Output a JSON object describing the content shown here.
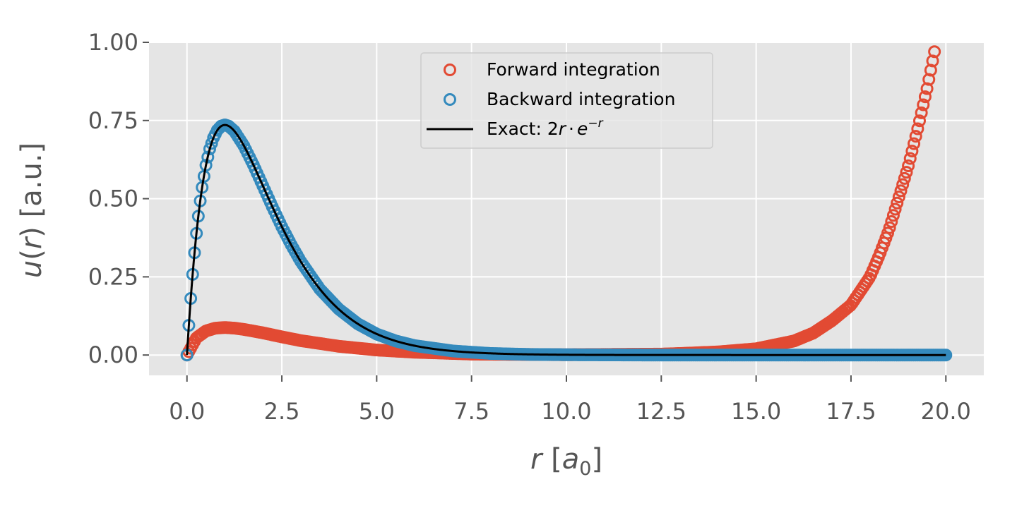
{
  "chart_data": {
    "type": "line",
    "xlabel": {
      "var": "r",
      "unit_open": " [",
      "unit_base": "a",
      "unit_sub": "0",
      "unit_close": "]"
    },
    "ylabel": {
      "var": "u",
      "open": "(",
      "arg": "r",
      "close": ")",
      "unit": " [a.u.]"
    },
    "xlim": [
      -1.0,
      21.0
    ],
    "ylim": [
      -0.065,
      1.0
    ],
    "x_ticks": [
      "0.0",
      "2.5",
      "5.0",
      "7.5",
      "10.0",
      "12.5",
      "15.0",
      "17.5",
      "20.0"
    ],
    "x_tick_values": [
      0,
      2.5,
      5,
      7.5,
      10,
      12.5,
      15,
      17.5,
      20
    ],
    "y_ticks": [
      "0.00",
      "0.25",
      "0.50",
      "0.75",
      "1.00"
    ],
    "y_tick_values": [
      0,
      0.25,
      0.5,
      0.75,
      1.0
    ],
    "grid": true,
    "legend_position": "top-center",
    "colors": {
      "forward": "#E24A33",
      "backward": "#348ABD",
      "exact": "#000000",
      "axes_bg": "#E5E5E5",
      "grid": "#FFFFFF",
      "tick": "#555555"
    },
    "series": [
      {
        "name": "Forward integration",
        "marker": "open-circle",
        "x": [
          0,
          0.25,
          0.5,
          0.75,
          1.0,
          1.25,
          1.5,
          2.0,
          2.5,
          3.0,
          4.0,
          5.0,
          6.0,
          7.5,
          10.0,
          12.5,
          13.0,
          14.0,
          15.0,
          16.0,
          16.5,
          17.0,
          17.5,
          18.0,
          18.25,
          18.5,
          18.75,
          19.0,
          19.25,
          19.5,
          19.6,
          19.7
        ],
        "y": [
          0.0,
          0.055,
          0.077,
          0.086,
          0.088,
          0.086,
          0.082,
          0.071,
          0.058,
          0.046,
          0.028,
          0.016,
          0.009,
          0.003,
          0.001,
          0.003,
          0.005,
          0.01,
          0.02,
          0.045,
          0.07,
          0.11,
          0.16,
          0.25,
          0.32,
          0.4,
          0.5,
          0.6,
          0.72,
          0.85,
          0.91,
          0.97
        ]
      },
      {
        "name": "Backward integration",
        "marker": "open-circle",
        "x": [
          0,
          0.05,
          0.1,
          0.15,
          0.2,
          0.25,
          0.3,
          0.35,
          0.4,
          0.5,
          0.6,
          0.7,
          0.8,
          0.9,
          1.0,
          1.1,
          1.25,
          1.5,
          1.75,
          2.0,
          2.25,
          2.5,
          2.75,
          3.0,
          3.5,
          4.0,
          4.5,
          5.0,
          5.5,
          6.0,
          7.0,
          8.0,
          9.0,
          10.0,
          12.0,
          14.0,
          16.0,
          18.0,
          20.0
        ],
        "y": [
          0.0,
          0.095,
          0.181,
          0.258,
          0.327,
          0.389,
          0.444,
          0.493,
          0.536,
          0.607,
          0.659,
          0.695,
          0.719,
          0.732,
          0.736,
          0.732,
          0.716,
          0.669,
          0.608,
          0.541,
          0.474,
          0.41,
          0.352,
          0.299,
          0.211,
          0.147,
          0.1,
          0.067,
          0.045,
          0.03,
          0.013,
          0.005,
          0.002,
          0.001,
          0.0,
          0.0,
          0.0,
          0.0,
          0.0
        ]
      },
      {
        "name": "Exact",
        "legend_label": {
          "prefix": "Exact: 2",
          "var": "r",
          "dot": "·",
          "base": "e",
          "sup": "−r"
        },
        "marker": "line",
        "formula": "2r·e^(−r)",
        "x_range": [
          0,
          20
        ]
      }
    ]
  }
}
